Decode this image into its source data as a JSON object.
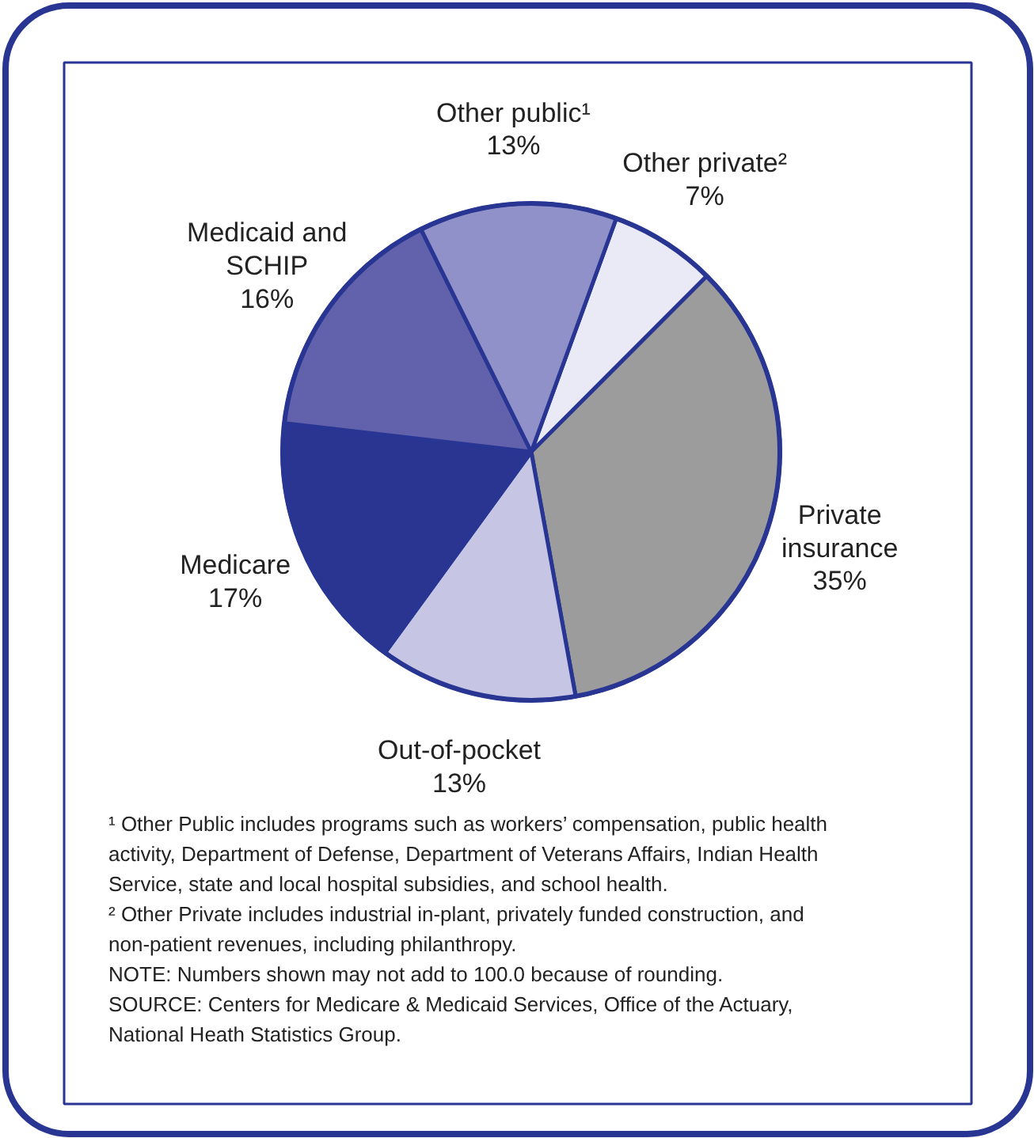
{
  "chart_data": {
    "type": "pie",
    "categories": [
      "Other private²",
      "Private insurance",
      "Out-of-pocket",
      "Medicare",
      "Medicaid and SCHIP",
      "Other public¹"
    ],
    "values": [
      7,
      35,
      13,
      17,
      16,
      13
    ],
    "colors": [
      "#e9eaf5",
      "#9c9c9c",
      "#c6c6e4",
      "#2a3592",
      "#6262ac",
      "#9191c9"
    ],
    "value_labels": [
      "7%",
      "35%",
      "13%",
      "17%",
      "16%",
      "13%"
    ],
    "annotations": [
      "¹ Other Public includes programs such as workers’ compensation, public health activity, Department of Defense, Department of Veterans Affairs, Indian Health Service, state and local hospital subsidies, and school health.",
      "² Other Private includes industrial in-plant, privately funded construction, and non-patient revenues, including philanthropy.",
      "NOTE: Numbers shown may not add to 100.0 because of rounding.",
      "SOURCE: Centers for Medicare & Medicaid Services, Office of the Actuary, National Heath Statistics Group."
    ]
  }
}
